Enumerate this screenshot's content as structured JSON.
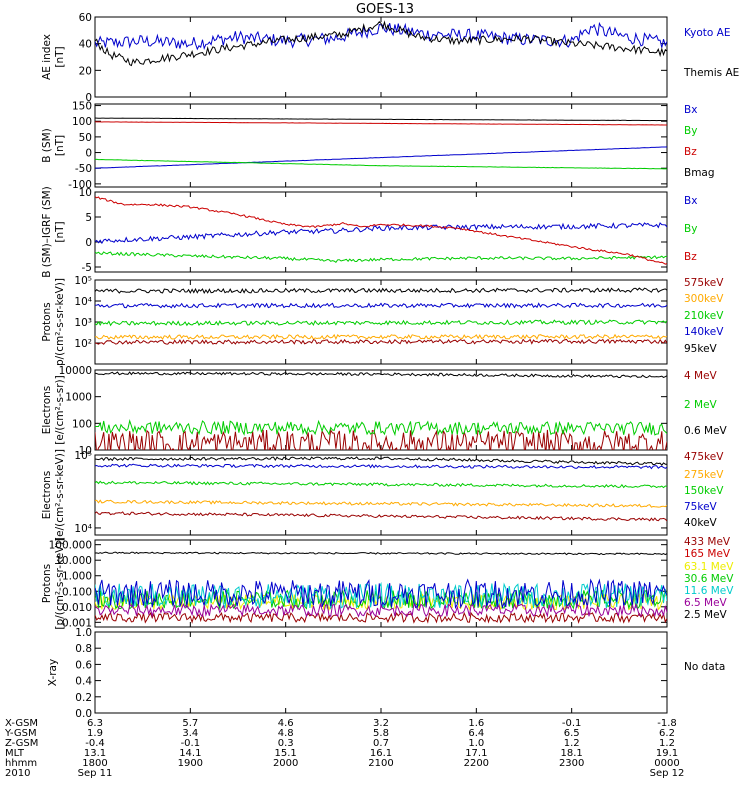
{
  "title": "GOES-13",
  "colors": {
    "black": "#000000",
    "blue": "#0000cc",
    "green": "#00cc00",
    "red": "#cc0000",
    "orange": "#ffaa00",
    "darkred": "#990000",
    "yellow": "#eeee00",
    "cyan": "#00cccc",
    "purple": "#990099"
  },
  "chart_data": [
    {
      "type": "line",
      "ylabel": [
        "AE index",
        "[nT]"
      ],
      "ylim": [
        0,
        60
      ],
      "yscale": "linear",
      "yticks": [
        0,
        20,
        40,
        60
      ],
      "ytick_labels": [
        "0",
        "20",
        "40",
        "60"
      ],
      "xlim": [
        0,
        6
      ],
      "series": [
        {
          "name": "Kyoto AE",
          "color": "#0000cc",
          "label_color": "#0000cc",
          "x": [
            0,
            0.5,
            1,
            1.5,
            2,
            2.5,
            3,
            3.2,
            3.5,
            4,
            4.5,
            5,
            5.2,
            5.5,
            6
          ],
          "y": [
            40,
            42,
            40,
            45,
            42,
            44,
            52,
            50,
            47,
            46,
            43,
            42,
            52,
            46,
            40
          ],
          "noise": 5
        },
        {
          "name": "Themis AE",
          "color": "#000000",
          "label_color": "#000000",
          "x": [
            0,
            0.15,
            0.4,
            0.8,
            1.5,
            2,
            2.6,
            3,
            3.4,
            3.8,
            4.5,
            5,
            5.5,
            6
          ],
          "y": [
            42,
            32,
            26,
            30,
            38,
            43,
            47,
            55,
            45,
            42,
            44,
            40,
            37,
            33
          ],
          "noise": 3
        }
      ]
    },
    {
      "type": "line",
      "ylabel": [
        "B (SM)",
        "[nT]"
      ],
      "ylim": [
        -110,
        155
      ],
      "yscale": "linear",
      "yticks": [
        -100,
        -50,
        0,
        50,
        100,
        150
      ],
      "ytick_labels": [
        "-100",
        "-50",
        "0",
        "50",
        "100",
        "150"
      ],
      "xlim": [
        0,
        6
      ],
      "series": [
        {
          "name": "Bx",
          "color": "#0000cc",
          "label_color": "#0000cc",
          "x": [
            0,
            6
          ],
          "y": [
            -50,
            18
          ],
          "noise": 0.5
        },
        {
          "name": "By",
          "color": "#00cc00",
          "label_color": "#00cc00",
          "x": [
            0,
            3,
            6
          ],
          "y": [
            -22,
            -42,
            -52
          ],
          "noise": 0.5
        },
        {
          "name": "Bz",
          "color": "#cc0000",
          "label_color": "#cc0000",
          "x": [
            0,
            6
          ],
          "y": [
            98,
            88
          ],
          "noise": 0.3
        },
        {
          "name": "Bmag",
          "color": "#000000",
          "label_color": "#000000",
          "x": [
            0,
            6
          ],
          "y": [
            110,
            102
          ],
          "noise": 0.3
        }
      ]
    },
    {
      "type": "line",
      "ylabel": [
        "B (SM)–IGRF (SM)",
        "[nT]"
      ],
      "ylim": [
        -6,
        10
      ],
      "yscale": "linear",
      "yticks": [
        -5,
        0,
        5,
        10
      ],
      "ytick_labels": [
        "-5",
        "0",
        "5",
        "10"
      ],
      "xlim": [
        0,
        6
      ],
      "series": [
        {
          "name": "Bx",
          "color": "#0000cc",
          "label_color": "#0000cc",
          "x": [
            0,
            1,
            2,
            2.5,
            3,
            4,
            5,
            6
          ],
          "y": [
            0.2,
            1,
            2,
            2.2,
            2.8,
            3,
            3.1,
            3.4
          ],
          "noise": 0.5
        },
        {
          "name": "By",
          "color": "#00cc00",
          "label_color": "#00cc00",
          "x": [
            0,
            1,
            2,
            2.5,
            3,
            4,
            5,
            6
          ],
          "y": [
            -2.2,
            -2.8,
            -3.3,
            -3.8,
            -3.5,
            -3.2,
            -3.3,
            -3
          ],
          "noise": 0.3
        },
        {
          "name": "Bz",
          "color": "#cc0000",
          "label_color": "#cc0000",
          "x": [
            0,
            0.3,
            0.6,
            1,
            1.5,
            2,
            2.3,
            2.6,
            2.8,
            3,
            3.4,
            3.8,
            4.2,
            4.7,
            5.2,
            5.6,
            6
          ],
          "y": [
            9,
            7.5,
            7.5,
            7,
            5.5,
            3.5,
            3,
            3.7,
            3,
            3.5,
            3.3,
            2.8,
            1.5,
            0,
            -1.5,
            -2.5,
            -4.5
          ],
          "noise": 0.2
        }
      ]
    },
    {
      "type": "line",
      "ylabel": [
        "Protons",
        "p/(cm²-s-sr-keV)]"
      ],
      "ylim": [
        10,
        100000
      ],
      "yscale": "log",
      "yticks": [
        100,
        1000,
        10000,
        100000
      ],
      "ytick_labels": [
        "10²",
        "10³",
        "10⁴",
        "10⁵"
      ],
      "xlim": [
        0,
        6
      ],
      "series": [
        {
          "name": "575keV",
          "color": "#000000",
          "label_color": "#990000",
          "x": [
            0,
            6
          ],
          "y": [
            30000,
            33000
          ],
          "noise": 0.1
        },
        {
          "name": "300keV",
          "color": "#ffaa00",
          "label_color": "#ffaa00",
          "x": [
            0,
            6
          ],
          "y": [
            190,
            200
          ],
          "noise": 0.1
        },
        {
          "name": "210keV",
          "color": "#00cc00",
          "label_color": "#00cc00",
          "x": [
            0,
            6
          ],
          "y": [
            850,
            1000
          ],
          "noise": 0.1
        },
        {
          "name": "140keV",
          "color": "#0000cc",
          "label_color": "#0000cc",
          "x": [
            0,
            6
          ],
          "y": [
            6000,
            6200
          ],
          "noise": 0.1
        },
        {
          "name": "95keV",
          "color": "#990000",
          "label_color": "#000000",
          "x": [
            0,
            6
          ],
          "y": [
            110,
            120
          ],
          "noise": 0.1
        }
      ]
    },
    {
      "type": "line",
      "ylabel": [
        "Electrons",
        "[e/(cm²-s-sr)]"
      ],
      "ylim": [
        10,
        10000
      ],
      "yscale": "log",
      "yticks": [
        10,
        100,
        1000,
        10000
      ],
      "ytick_labels": [
        "10",
        "100",
        "1000",
        "10000"
      ],
      "xlim": [
        0,
        6
      ],
      "series": [
        {
          "name": "4 MeV",
          "color": "#990000",
          "label_color": "#990000",
          "x": [
            0,
            6
          ],
          "y": [
            18,
            18
          ],
          "noise": 0.5
        },
        {
          "name": "2 MeV",
          "color": "#00cc00",
          "label_color": "#00cc00",
          "x": [
            0,
            6
          ],
          "y": [
            70,
            65
          ],
          "noise": 0.25
        },
        {
          "name": "0.6 MeV",
          "color": "#000000",
          "label_color": "#000000",
          "x": [
            0,
            3,
            6
          ],
          "y": [
            7500,
            7000,
            5500
          ],
          "noise": 0.05
        }
      ]
    },
    {
      "type": "line",
      "ylabel": [
        "Electrons",
        "[e/(cm²-s-sr-keV)]"
      ],
      "ylim": [
        8000,
        100000
      ],
      "yscale": "log",
      "yticks": [
        10000,
        100000
      ],
      "ytick_labels": [
        "10⁴",
        "10⁵"
      ],
      "xlim": [
        0,
        6
      ],
      "series": [
        {
          "name": "475keV",
          "color": "#990000",
          "label_color": "#990000",
          "x": [
            0,
            6
          ],
          "y": [
            16000,
            13000
          ],
          "noise": 0.02
        },
        {
          "name": "275keV",
          "color": "#ffaa00",
          "label_color": "#ffaa00",
          "x": [
            0,
            6
          ],
          "y": [
            23000,
            20000
          ],
          "noise": 0.02
        },
        {
          "name": "150keV",
          "color": "#00cc00",
          "label_color": "#00cc00",
          "x": [
            0,
            6
          ],
          "y": [
            42000,
            37000
          ],
          "noise": 0.02
        },
        {
          "name": "75keV",
          "color": "#0000cc",
          "label_color": "#0000cc",
          "x": [
            0,
            6
          ],
          "y": [
            72000,
            68000
          ],
          "noise": 0.02
        },
        {
          "name": "40keV",
          "color": "#000000",
          "label_color": "#000000",
          "x": [
            0,
            3,
            6
          ],
          "y": [
            88000,
            90000,
            75000
          ],
          "noise": 0.02
        }
      ]
    },
    {
      "type": "line",
      "ylabel": [
        "Protons",
        "[p/(cm²-s-sr-keV)]"
      ],
      "ylim": [
        0.0005,
        200
      ],
      "yscale": "log",
      "yticks": [
        0.001,
        0.01,
        0.1,
        1,
        10,
        100
      ],
      "ytick_labels": [
        "0.001",
        "0.010",
        "0.100",
        "1.000",
        "10.000",
        "100.000"
      ],
      "xlim": [
        0,
        6
      ],
      "series": [
        {
          "name": "433 MeV",
          "color": "#000000",
          "label_color": "#990000",
          "x": [
            0,
            6
          ],
          "y": [
            30,
            25
          ],
          "noise": 0.05
        },
        {
          "name": "165 MeV",
          "color": "#990000",
          "label_color": "#cc0000",
          "x": [
            0,
            6
          ],
          "y": [
            0.002,
            0.002
          ],
          "noise": 0.3
        },
        {
          "name": "63.1 MeV",
          "color": "#eeee00",
          "label_color": "#eeee00",
          "x": [
            0,
            6
          ],
          "y": [
            0.02,
            0.02
          ],
          "noise": 0.5
        },
        {
          "name": "30.6 MeV",
          "color": "#00cc00",
          "label_color": "#00cc00",
          "x": [
            0,
            6
          ],
          "y": [
            0.03,
            0.03
          ],
          "noise": 0.6
        },
        {
          "name": "11.6 MeV",
          "color": "#00cccc",
          "label_color": "#00cccc",
          "x": [
            0,
            6
          ],
          "y": [
            0.05,
            0.05
          ],
          "noise": 0.8
        },
        {
          "name": "6.5 MeV",
          "color": "#0000cc",
          "label_color": "#990099",
          "x": [
            0,
            6
          ],
          "y": [
            0.07,
            0.07
          ],
          "noise": 0.9
        },
        {
          "name": "2.5 MeV",
          "color": "#990099",
          "label_color": "#000000",
          "x": [
            0,
            6
          ],
          "y": [
            0.006,
            0.006
          ],
          "noise": 0.4
        }
      ]
    },
    {
      "type": "line",
      "ylabel": [
        "X-ray"
      ],
      "ylim": [
        0,
        1
      ],
      "yscale": "linear",
      "yticks": [
        0,
        0.2,
        0.4,
        0.6,
        0.8,
        1.0
      ],
      "ytick_labels": [
        "0.0",
        "0.2",
        "0.4",
        "0.6",
        "0.8",
        "1.0"
      ],
      "xlim": [
        0,
        6
      ],
      "note": "No data",
      "series": []
    }
  ],
  "x_axis": {
    "tick_values": [
      0,
      1,
      2,
      3,
      4,
      5,
      6
    ],
    "rows": [
      {
        "label": "X-GSM",
        "values": [
          "6.3",
          "5.7",
          "4.6",
          "3.2",
          "1.6",
          "-0.1",
          "-1.8"
        ]
      },
      {
        "label": "Y-GSM",
        "values": [
          "1.9",
          "3.4",
          "4.8",
          "5.8",
          "6.4",
          "6.5",
          "6.2"
        ]
      },
      {
        "label": "Z-GSM",
        "values": [
          "-0.4",
          "-0.1",
          "0.3",
          "0.7",
          "1.0",
          "1.2",
          "1.2"
        ]
      },
      {
        "label": "MLT",
        "values": [
          "13.1",
          "14.1",
          "15.1",
          "16.1",
          "17.1",
          "18.1",
          "19.1"
        ]
      },
      {
        "label": "hhmm",
        "values": [
          "1800",
          "1900",
          "2000",
          "2100",
          "2200",
          "2300",
          "0000"
        ]
      }
    ],
    "year": "2010",
    "date_start": "Sep 11",
    "date_end": "Sep 12"
  }
}
